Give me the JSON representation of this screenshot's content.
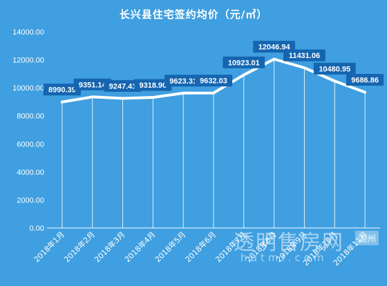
{
  "chart_data": {
    "type": "line",
    "title": "长兴县住宅签约均价（元/㎡）",
    "categories": [
      "2018年1月",
      "2018年2月",
      "2018年3月",
      "2018年4月",
      "2018年5月",
      "2018年6月",
      "2018年7月",
      "2018年8月",
      "2018年9月",
      "2018年10月",
      "2018年11月"
    ],
    "values": [
      8990.39,
      9351.14,
      9247.41,
      9318.9,
      9623.31,
      9632.03,
      10923.01,
      12046.94,
      11431.06,
      10480.95,
      9686.86
    ],
    "data_labels": [
      "8990.39",
      "9351.14",
      "9247.41",
      "9318.90",
      "9623.31",
      "9632.03",
      "10923.01",
      "12046.94",
      "11431.06",
      "10480.95",
      "9686.86"
    ],
    "y_ticks": [
      "0.00",
      "2000.00",
      "4000.00",
      "6000.00",
      "8000.00",
      "10000.00",
      "12000.00",
      "14000.00"
    ],
    "ylim": [
      0,
      14000
    ],
    "xlabel": "",
    "ylabel": "",
    "grid": "vertical drop lines",
    "legend": "none",
    "colors": {
      "background": "#3f9fe0",
      "line": "#ffffff",
      "label_box": "#1565b0"
    }
  },
  "watermark": {
    "main": "透明售房网",
    "badge": "湖州",
    "url": "hutmf.com"
  }
}
